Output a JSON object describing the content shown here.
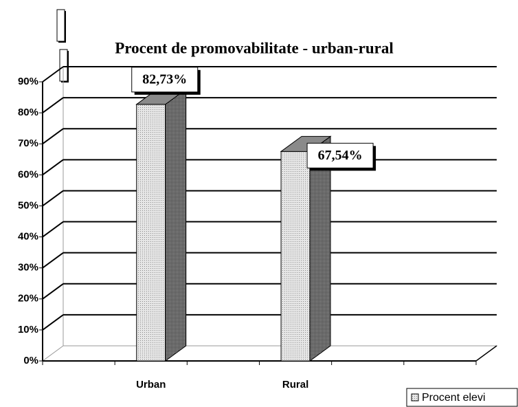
{
  "chart_data": {
    "type": "bar3d",
    "title": "Procent de promovabilitate - urban-rural",
    "categories": [
      null,
      "Urban",
      null,
      "Rural",
      null,
      null
    ],
    "series": [
      {
        "name": "Procent elevi",
        "color": "#d8d8d8",
        "values": [
          null,
          82.73,
          null,
          67.54,
          null,
          null
        ],
        "value_labels": [
          null,
          "82,73%",
          null,
          "67,54%",
          null,
          null
        ]
      }
    ],
    "ylim": [
      0,
      90
    ],
    "yticks": [
      {
        "value": 0,
        "label": "0%"
      },
      {
        "value": 10,
        "label": "10%"
      },
      {
        "value": 20,
        "label": "20%"
      },
      {
        "value": 30,
        "label": "30%"
      },
      {
        "value": 40,
        "label": "40%"
      },
      {
        "value": 50,
        "label": "50%"
      },
      {
        "value": 60,
        "label": "60%"
      },
      {
        "value": 70,
        "label": "70%"
      },
      {
        "value": 80,
        "label": "80%"
      },
      {
        "value": 90,
        "label": "90%"
      }
    ],
    "grid": true,
    "legend": "bottom-right"
  }
}
